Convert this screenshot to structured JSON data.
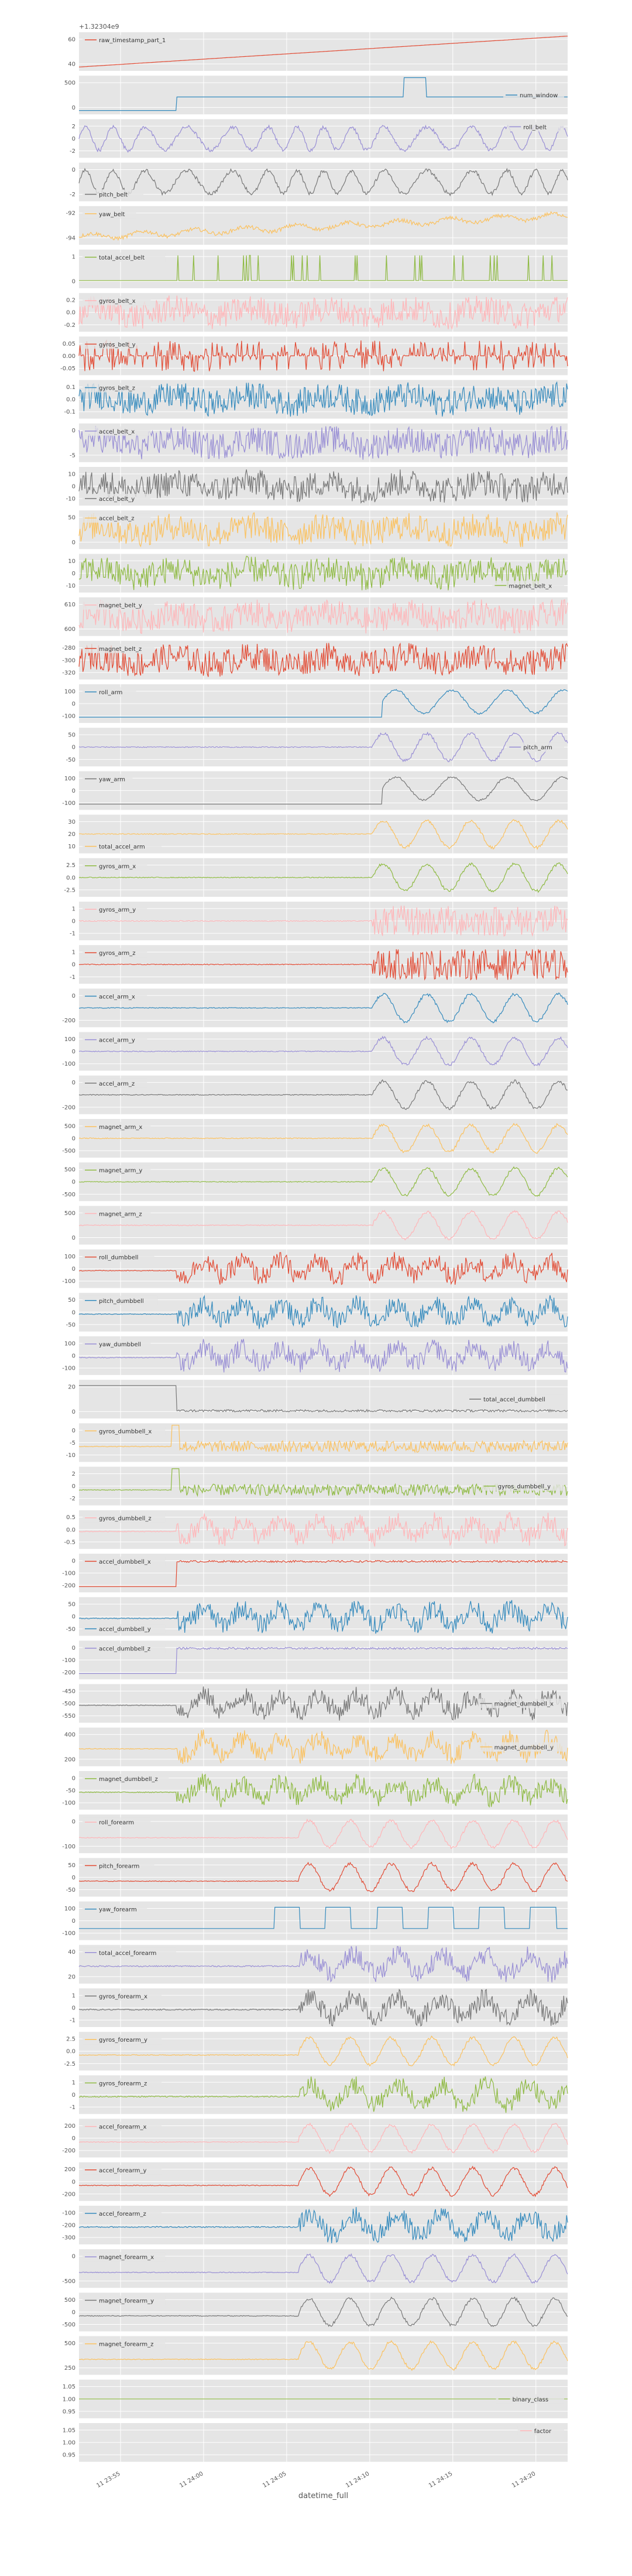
{
  "chart_data": {
    "type": "line",
    "xlabel": "datetime_full",
    "x_ticks": [
      "11 23:55",
      "11 24:00",
      "11 24:05",
      "11 24:10",
      "11 24:15",
      "11 24:20"
    ],
    "first_offset": "+1.32304e9",
    "grid": true,
    "legend_position": "per-panel",
    "panels": [
      {
        "name": "raw_timestamp_part_1",
        "color": "#e24a33",
        "legend": "top-left",
        "ticks": [
          "60",
          "40"
        ],
        "pattern": "ramp",
        "yr": [
          0,
          1
        ]
      },
      {
        "name": "num_window",
        "color": "#348abd",
        "legend": "right",
        "ticks": [
          "500",
          "0"
        ],
        "pattern": "step3",
        "yr": [
          0,
          1
        ]
      },
      {
        "name": "roll_belt",
        "color": "#988ed5",
        "legend": "top-right",
        "ticks": [
          "2",
          "0",
          "-2"
        ],
        "pattern": "osc",
        "yr": [
          0,
          1
        ]
      },
      {
        "name": "pitch_belt",
        "color": "#777777",
        "legend": "bottom-left",
        "ticks": [
          "0",
          "-2"
        ],
        "pattern": "osc",
        "yr": [
          0,
          1
        ]
      },
      {
        "name": "yaw_belt",
        "color": "#fbc15e",
        "legend": "top-left",
        "ticks": [
          "-92",
          "-94"
        ],
        "pattern": "rise",
        "yr": [
          0,
          1
        ]
      },
      {
        "name": "total_accel_belt",
        "color": "#8eba42",
        "legend": "top-left",
        "ticks": [
          "1",
          "0"
        ],
        "pattern": "spikes",
        "yr": [
          0,
          1
        ]
      },
      {
        "name": "gyros_belt_x",
        "color": "#ffb5b8",
        "legend": "top-left",
        "ticks": [
          "0.2",
          "0.0",
          "-0.2"
        ],
        "pattern": "noise",
        "yr": [
          0,
          1
        ]
      },
      {
        "name": "gyros_belt_y",
        "color": "#e24a33",
        "legend": "top-left",
        "ticks": [
          "0.05",
          "0.00",
          "-0.05"
        ],
        "pattern": "bars",
        "yr": [
          0,
          1
        ]
      },
      {
        "name": "gyros_belt_z",
        "color": "#348abd",
        "legend": "top-left",
        "ticks": [
          "0.1",
          "0.0",
          "-0.1"
        ],
        "pattern": "noise",
        "yr": [
          0,
          1
        ]
      },
      {
        "name": "accel_belt_x",
        "color": "#988ed5",
        "legend": "top-left",
        "ticks": [
          "0",
          "-5"
        ],
        "pattern": "noise",
        "yr": [
          0,
          1
        ]
      },
      {
        "name": "accel_belt_y",
        "color": "#777777",
        "legend": "bottom-left",
        "ticks": [
          "10",
          "0",
          "-10"
        ],
        "pattern": "noise",
        "yr": [
          0,
          1
        ]
      },
      {
        "name": "accel_belt_z",
        "color": "#fbc15e",
        "legend": "top-left",
        "ticks": [
          "50",
          "0"
        ],
        "pattern": "noise",
        "yr": [
          0,
          1
        ]
      },
      {
        "name": "magnet_belt_x",
        "color": "#8eba42",
        "legend": "bottom-right",
        "ticks": [
          "10",
          "0",
          "-10"
        ],
        "pattern": "noise",
        "yr": [
          0,
          1
        ]
      },
      {
        "name": "magnet_belt_y",
        "color": "#ffb5b8",
        "legend": "top-left",
        "ticks": [
          "610",
          "600"
        ],
        "pattern": "noise",
        "yr": [
          0,
          1
        ]
      },
      {
        "name": "magnet_belt_z",
        "color": "#e24a33",
        "legend": "top-left",
        "ticks": [
          "-280",
          "-300",
          "-320"
        ],
        "pattern": "noise",
        "yr": [
          0,
          1
        ]
      },
      {
        "name": "roll_arm",
        "color": "#348abd",
        "legend": "top-left",
        "ticks": [
          "100",
          "0",
          "-100"
        ],
        "pattern": "armstep",
        "yr": [
          0,
          1
        ]
      },
      {
        "name": "pitch_arm",
        "color": "#988ed5",
        "legend": "right",
        "ticks": [
          "50",
          "0",
          "-50"
        ],
        "pattern": "armosc",
        "yr": [
          0,
          1
        ]
      },
      {
        "name": "yaw_arm",
        "color": "#777777",
        "legend": "top-left",
        "ticks": [
          "100",
          "0",
          "-100"
        ],
        "pattern": "armstep",
        "yr": [
          0,
          1
        ]
      },
      {
        "name": "total_accel_arm",
        "color": "#fbc15e",
        "legend": "bottom-left",
        "ticks": [
          "30",
          "20",
          "10"
        ],
        "pattern": "armosc",
        "yr": [
          0,
          1
        ]
      },
      {
        "name": "gyros_arm_x",
        "color": "#8eba42",
        "legend": "top-left",
        "ticks": [
          "2.5",
          "0.0",
          "-2.5"
        ],
        "pattern": "armosc",
        "yr": [
          0,
          1
        ]
      },
      {
        "name": "gyros_arm_y",
        "color": "#ffb5b8",
        "legend": "top-left",
        "ticks": [
          "1",
          "0",
          "-1"
        ],
        "pattern": "armnoise",
        "yr": [
          0,
          1
        ]
      },
      {
        "name": "gyros_arm_z",
        "color": "#e24a33",
        "legend": "top-left",
        "ticks": [
          "1",
          "0",
          "-1"
        ],
        "pattern": "armnoise",
        "yr": [
          0,
          1
        ]
      },
      {
        "name": "accel_arm_x",
        "color": "#348abd",
        "legend": "top-left",
        "ticks": [
          "0",
          "-200"
        ],
        "pattern": "armosc",
        "yr": [
          0,
          1
        ]
      },
      {
        "name": "accel_arm_y",
        "color": "#988ed5",
        "legend": "top-left",
        "ticks": [
          "100",
          "0",
          "-100"
        ],
        "pattern": "armosc",
        "yr": [
          0,
          1
        ]
      },
      {
        "name": "accel_arm_z",
        "color": "#777777",
        "legend": "top-left",
        "ticks": [
          "0",
          "-200"
        ],
        "pattern": "armosc",
        "yr": [
          0,
          1
        ]
      },
      {
        "name": "magnet_arm_x",
        "color": "#fbc15e",
        "legend": "top-left",
        "ticks": [
          "500",
          "0",
          "-500"
        ],
        "pattern": "armosc",
        "yr": [
          0,
          1
        ]
      },
      {
        "name": "magnet_arm_y",
        "color": "#8eba42",
        "legend": "top-left",
        "ticks": [
          "500",
          "0",
          "-500"
        ],
        "pattern": "armosc",
        "yr": [
          0,
          1
        ]
      },
      {
        "name": "magnet_arm_z",
        "color": "#ffb5b8",
        "legend": "top-left",
        "ticks": [
          "500",
          "0"
        ],
        "pattern": "armosc",
        "yr": [
          0,
          1
        ]
      },
      {
        "name": "roll_dumbbell",
        "color": "#e24a33",
        "legend": "top-left",
        "ticks": [
          "100",
          "0",
          "-100"
        ],
        "pattern": "dbnoise",
        "yr": [
          0,
          1
        ]
      },
      {
        "name": "pitch_dumbbell",
        "color": "#348abd",
        "legend": "top-left",
        "ticks": [
          "50",
          "0",
          "-50"
        ],
        "pattern": "dbnoise",
        "yr": [
          0,
          1
        ]
      },
      {
        "name": "yaw_dumbbell",
        "color": "#988ed5",
        "legend": "top-left",
        "ticks": [
          "100",
          "0",
          "-100"
        ],
        "pattern": "dbnoise",
        "yr": [
          0,
          1
        ]
      },
      {
        "name": "total_accel_dumbbell",
        "color": "#777777",
        "legend": "right",
        "ticks": [
          "20",
          "0"
        ],
        "pattern": "dbdrop",
        "yr": [
          0,
          1
        ]
      },
      {
        "name": "gyros_dumbbell_x",
        "color": "#fbc15e",
        "legend": "top-left",
        "ticks": [
          "0",
          "-5",
          "-10"
        ],
        "pattern": "dbspike",
        "yr": [
          0,
          1
        ]
      },
      {
        "name": "gyros_dumbbell_y",
        "color": "#8eba42",
        "legend": "right",
        "ticks": [
          "2",
          "0",
          "-2"
        ],
        "pattern": "dbspike",
        "yr": [
          0,
          1
        ]
      },
      {
        "name": "gyros_dumbbell_z",
        "color": "#ffb5b8",
        "legend": "top-left",
        "ticks": [
          "0.5",
          "0.0",
          "-0.5"
        ],
        "pattern": "dbnoise",
        "yr": [
          0,
          1
        ]
      },
      {
        "name": "accel_dumbbell_x",
        "color": "#e24a33",
        "legend": "top-left",
        "ticks": [
          "0",
          "-100",
          "-200"
        ],
        "pattern": "dbstep",
        "yr": [
          0,
          1
        ]
      },
      {
        "name": "accel_dumbbell_y",
        "color": "#348abd",
        "legend": "bottom-left",
        "ticks": [
          "50",
          "0",
          "-50"
        ],
        "pattern": "dbnoise",
        "yr": [
          0,
          1
        ]
      },
      {
        "name": "accel_dumbbell_z",
        "color": "#988ed5",
        "legend": "top-left",
        "ticks": [
          "0",
          "-100",
          "-200"
        ],
        "pattern": "dbstep",
        "yr": [
          0,
          1
        ]
      },
      {
        "name": "magnet_dumbbell_x",
        "color": "#777777",
        "legend": "right",
        "ticks": [
          "-450",
          "-500",
          "-550"
        ],
        "pattern": "dbnoise",
        "yr": [
          0,
          1
        ]
      },
      {
        "name": "magnet_dumbbell_y",
        "color": "#fbc15e",
        "legend": "right",
        "ticks": [
          "400",
          "200"
        ],
        "pattern": "dbnoise",
        "yr": [
          0,
          1
        ]
      },
      {
        "name": "magnet_dumbbell_z",
        "color": "#8eba42",
        "legend": "top-left",
        "ticks": [
          "0",
          "-50",
          "-100"
        ],
        "pattern": "dbnoise",
        "yr": [
          0,
          1
        ]
      },
      {
        "name": "roll_forearm",
        "color": "#ffb5b8",
        "legend": "top-left",
        "ticks": [
          "0",
          "-100"
        ],
        "pattern": "faosc",
        "yr": [
          0,
          1
        ]
      },
      {
        "name": "pitch_forearm",
        "color": "#e24a33",
        "legend": "top-left",
        "ticks": [
          "50",
          "0",
          "-50"
        ],
        "pattern": "faosc",
        "yr": [
          0,
          1
        ]
      },
      {
        "name": "yaw_forearm",
        "color": "#348abd",
        "legend": "top-left",
        "ticks": [
          "100",
          "0",
          "-100"
        ],
        "pattern": "fasquare",
        "yr": [
          0,
          1
        ]
      },
      {
        "name": "total_accel_forearm",
        "color": "#988ed5",
        "legend": "top-left",
        "ticks": [
          "40",
          "20"
        ],
        "pattern": "fanoise",
        "yr": [
          0,
          1
        ]
      },
      {
        "name": "gyros_forearm_x",
        "color": "#777777",
        "legend": "top-left",
        "ticks": [
          "1",
          "0",
          "-1"
        ],
        "pattern": "fanoise",
        "yr": [
          0,
          1
        ]
      },
      {
        "name": "gyros_forearm_y",
        "color": "#fbc15e",
        "legend": "top-left",
        "ticks": [
          "2.5",
          "0.0",
          "-2.5"
        ],
        "pattern": "faosc",
        "yr": [
          0,
          1
        ]
      },
      {
        "name": "gyros_forearm_z",
        "color": "#8eba42",
        "legend": "top-left",
        "ticks": [
          "1",
          "0",
          "-1"
        ],
        "pattern": "fanoise",
        "yr": [
          0,
          1
        ]
      },
      {
        "name": "accel_forearm_x",
        "color": "#ffb5b8",
        "legend": "top-left",
        "ticks": [
          "200",
          "0",
          "-200"
        ],
        "pattern": "faosc",
        "yr": [
          0,
          1
        ]
      },
      {
        "name": "accel_forearm_y",
        "color": "#e24a33",
        "legend": "top-left",
        "ticks": [
          "200",
          "0",
          "-200"
        ],
        "pattern": "faosc",
        "yr": [
          0,
          1
        ]
      },
      {
        "name": "accel_forearm_z",
        "color": "#348abd",
        "legend": "top-left",
        "ticks": [
          "-100",
          "-200",
          "-300"
        ],
        "pattern": "fanoise",
        "yr": [
          0,
          1
        ]
      },
      {
        "name": "magnet_forearm_x",
        "color": "#988ed5",
        "legend": "top-left",
        "ticks": [
          "0",
          "-500"
        ],
        "pattern": "faosc",
        "yr": [
          0,
          1
        ]
      },
      {
        "name": "magnet_forearm_y",
        "color": "#777777",
        "legend": "top-left",
        "ticks": [
          "500",
          "0",
          "-500"
        ],
        "pattern": "faosc",
        "yr": [
          0,
          1
        ]
      },
      {
        "name": "magnet_forearm_z",
        "color": "#fbc15e",
        "legend": "top-left",
        "ticks": [
          "500",
          "250"
        ],
        "pattern": "faosc",
        "yr": [
          0,
          1
        ]
      },
      {
        "name": "binary_class",
        "color": "#8eba42",
        "legend": "right",
        "ticks": [
          "1.05",
          "1.00",
          "0.95"
        ],
        "pattern": "flat",
        "yr": [
          0,
          1
        ]
      },
      {
        "name": "factor",
        "color": "#ffb5b8",
        "legend": "top-right",
        "ticks": [
          "1.05",
          "1.00",
          "0.95"
        ],
        "pattern": "none",
        "yr": [
          0,
          1
        ]
      }
    ]
  }
}
